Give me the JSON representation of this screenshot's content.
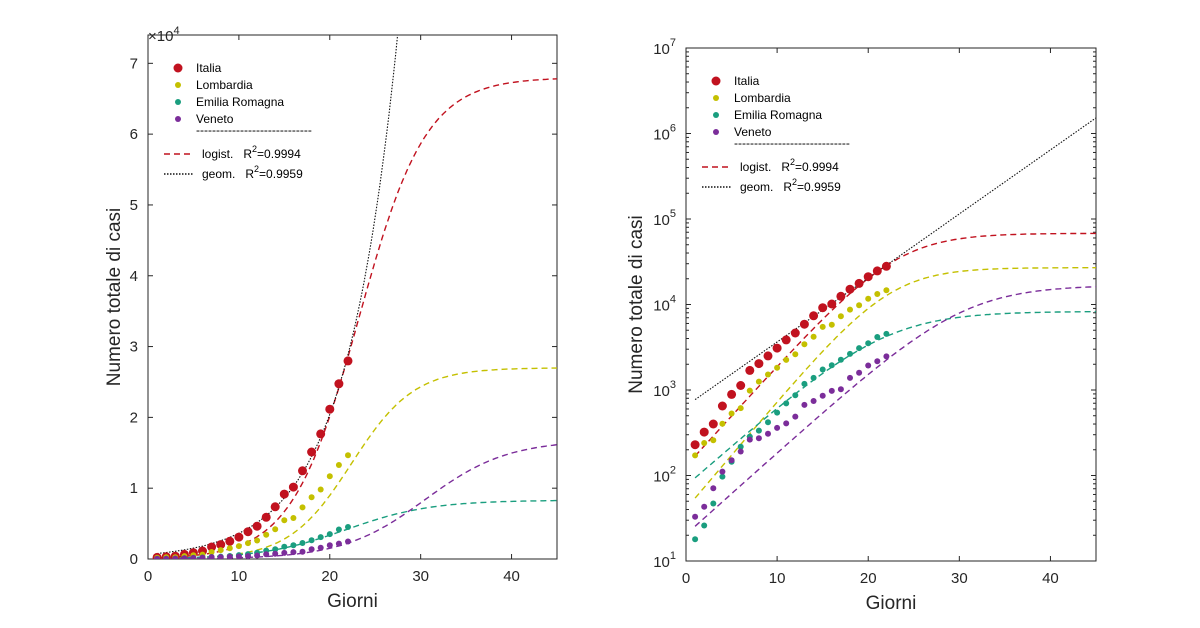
{
  "chart_data": [
    {
      "type": "scatter",
      "scale": "linear",
      "multiplier_label": "×10",
      "multiplier_exponent": "4",
      "xlabel": "Giorni",
      "ylabel": "Numero totale di casi",
      "xlim": [
        0,
        45
      ],
      "ylim": [
        0,
        74000
      ],
      "xticks": [
        0,
        10,
        20,
        30,
        40
      ],
      "xtick_labels": [
        "0",
        "10",
        "20",
        "30",
        "40"
      ],
      "yticks": [
        0,
        10000,
        20000,
        30000,
        40000,
        50000,
        60000,
        70000
      ],
      "ytick_labels": [
        "0",
        "1",
        "2",
        "3",
        "4",
        "5",
        "6",
        "7"
      ],
      "legend_position": "top-left"
    },
    {
      "type": "scatter",
      "scale": "log",
      "xlabel": "Giorni",
      "ylabel": "Numero totale di casi",
      "xlim": [
        0,
        45
      ],
      "ylim": [
        10,
        10000000
      ],
      "xticks": [
        0,
        10,
        20,
        30,
        40
      ],
      "xtick_labels": [
        "0",
        "10",
        "20",
        "30",
        "40"
      ],
      "yticks": [
        10,
        100,
        1000,
        10000,
        100000,
        1000000,
        10000000
      ],
      "ytick_labels": [
        {
          "base": "10",
          "exp": "1"
        },
        {
          "base": "10",
          "exp": "2"
        },
        {
          "base": "10",
          "exp": "3"
        },
        {
          "base": "10",
          "exp": "4"
        },
        {
          "base": "10",
          "exp": "5"
        },
        {
          "base": "10",
          "exp": "6"
        },
        {
          "base": "10",
          "exp": "7"
        }
      ],
      "legend_position": "top-left"
    }
  ],
  "series": [
    {
      "name": "Italia",
      "color": "#c1121f",
      "marker": "large-dot",
      "x": [
        1,
        2,
        3,
        4,
        5,
        6,
        7,
        8,
        9,
        10,
        11,
        12,
        13,
        14,
        15,
        16,
        17,
        18,
        19,
        20,
        21,
        22
      ],
      "y": [
        229,
        322,
        400,
        650,
        888,
        1128,
        1694,
        2036,
        2502,
        3089,
        3858,
        4636,
        5883,
        7375,
        9172,
        10149,
        12462,
        15113,
        17660,
        21157,
        24747,
        27980
      ]
    },
    {
      "name": "Lombardia",
      "color": "#c4c000",
      "marker": "dot",
      "x": [
        1,
        2,
        3,
        4,
        5,
        6,
        7,
        8,
        9,
        10,
        11,
        12,
        13,
        14,
        15,
        16,
        17,
        18,
        19,
        20,
        21,
        22
      ],
      "y": [
        172,
        240,
        258,
        403,
        531,
        615,
        984,
        1254,
        1520,
        1820,
        2251,
        2612,
        3420,
        4189,
        5469,
        5791,
        7280,
        8725,
        9820,
        11685,
        13272,
        14649
      ]
    },
    {
      "name": "Emilia Romagna",
      "color": "#1a9e7f",
      "marker": "dot",
      "x": [
        1,
        2,
        3,
        4,
        5,
        6,
        7,
        8,
        9,
        10,
        11,
        12,
        13,
        14,
        15,
        16,
        17,
        18,
        19,
        20,
        21,
        22
      ],
      "y": [
        18,
        26,
        47,
        97,
        145,
        217,
        285,
        335,
        420,
        544,
        698,
        870,
        1180,
        1386,
        1739,
        1947,
        2263,
        2644,
        3093,
        3522,
        4173,
        4525
      ]
    },
    {
      "name": "Veneto",
      "color": "#7b2d9a",
      "marker": "dot",
      "x": [
        1,
        2,
        3,
        4,
        5,
        6,
        7,
        8,
        9,
        10,
        11,
        12,
        13,
        14,
        15,
        16,
        17,
        18,
        19,
        20,
        21,
        22
      ],
      "y": [
        33,
        43,
        71,
        111,
        151,
        191,
        263,
        273,
        307,
        360,
        407,
        488,
        670,
        744,
        856,
        977,
        1023,
        1384,
        1595,
        1937,
        2172,
        2473
      ]
    }
  ],
  "fits": [
    {
      "label": "logist.",
      "r2_label": "R",
      "r2_exp": "2",
      "r2_value": "=0.9994",
      "style": "dashed"
    },
    {
      "label": "geom.",
      "r2_label": "R",
      "r2_exp": "2",
      "r2_value": "=0.9959",
      "style": "dotted"
    }
  ],
  "legend_separator": "-----------------------------"
}
